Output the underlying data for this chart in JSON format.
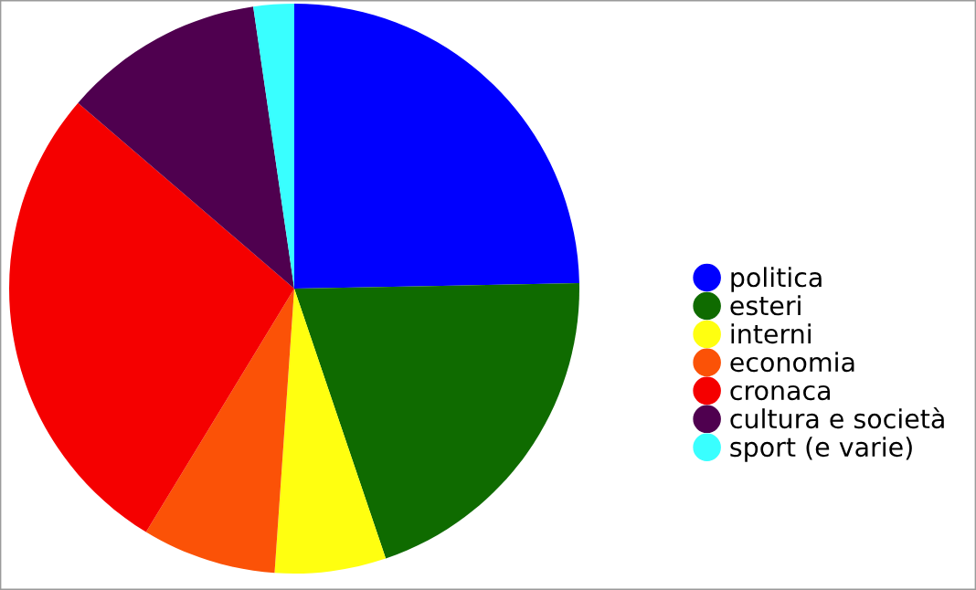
{
  "chart_data": {
    "type": "pie",
    "categories": [
      "politica",
      "esteri",
      "interni",
      "economia",
      "cronaca",
      "cultura e società",
      "sport (e varie)"
    ],
    "values": [
      24.7,
      20.1,
      6.3,
      7.6,
      27.6,
      11.4,
      2.3
    ],
    "colors": [
      "#0000ff",
      "#0f6b00",
      "#ffff10",
      "#fb5207",
      "#f50000",
      "#4f004f",
      "#39ffff"
    ],
    "legend": "right"
  }
}
